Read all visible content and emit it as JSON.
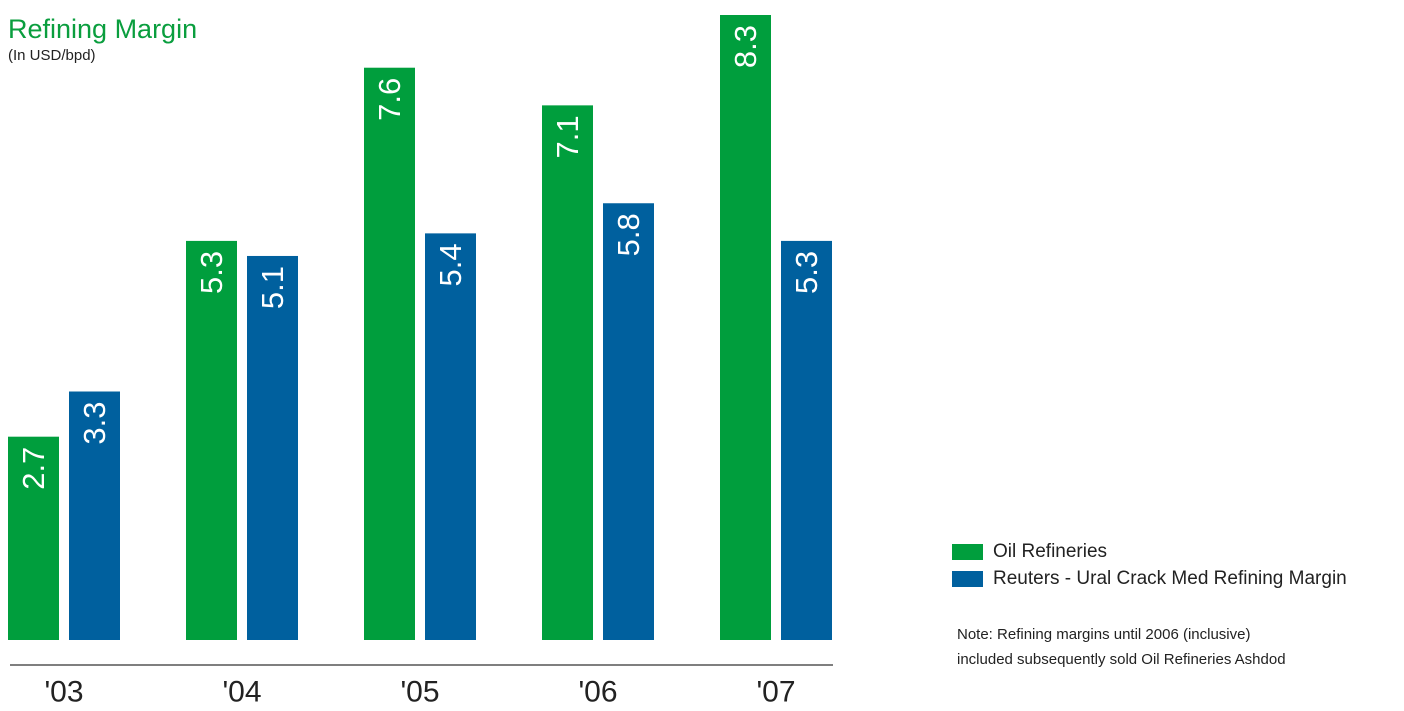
{
  "chart_data": {
    "type": "bar",
    "title": "Refining Margin",
    "subtitle": "(In USD/bpd)",
    "categories": [
      "'03",
      "'04",
      "'05",
      "'06",
      "'07"
    ],
    "series": [
      {
        "name": "Oil Refineries",
        "color": "#009e3d",
        "values": [
          2.7,
          5.3,
          7.6,
          7.1,
          8.3
        ],
        "labels": [
          "2.7",
          "5.3",
          "7.6",
          "7.1",
          "8.3"
        ]
      },
      {
        "name": "Reuters - Ural Crack Med Refining Margin",
        "color": "#00609e",
        "values": [
          3.3,
          5.1,
          5.4,
          5.8,
          5.3
        ],
        "labels": [
          "3.3",
          "5.1",
          "5.4",
          "5.8",
          "5.3"
        ]
      }
    ],
    "ylim": [
      0,
      8.3
    ],
    "grid": false,
    "legend_position": "right",
    "data_labels": "inside-top-rotated"
  },
  "note": {
    "lines": [
      "Note: Refining margins until 2006 (inclusive)",
      "included subsequently sold Oil Refineries Ashdod"
    ]
  }
}
